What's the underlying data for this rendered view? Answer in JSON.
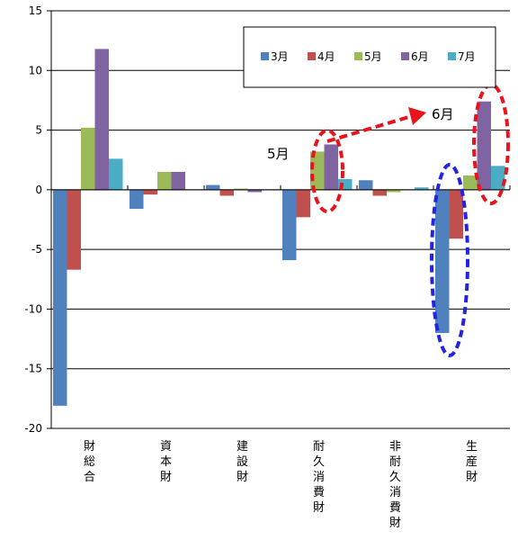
{
  "chart_data": {
    "type": "bar",
    "categories": [
      "財総合",
      "資本財",
      "建設財",
      "耐久消費財",
      "非耐久消費財",
      "生産財"
    ],
    "series": [
      {
        "name": "3月",
        "color": "#4F81BD",
        "values": [
          -18.1,
          -1.6,
          0.4,
          -5.9,
          0.8,
          -12.0
        ]
      },
      {
        "name": "4月",
        "color": "#C0504D",
        "values": [
          -6.7,
          -0.4,
          -0.5,
          -2.3,
          -0.5,
          -4.1
        ]
      },
      {
        "name": "5月",
        "color": "#9BBB59",
        "values": [
          5.2,
          1.5,
          0.1,
          3.2,
          -0.2,
          1.2
        ]
      },
      {
        "name": "6月",
        "color": "#8064A2",
        "values": [
          11.8,
          1.5,
          -0.2,
          3.8,
          0.0,
          7.4
        ]
      },
      {
        "name": "7月",
        "color": "#4BACC6",
        "values": [
          2.6,
          0.0,
          0.0,
          0.9,
          0.2,
          2.0
        ]
      }
    ],
    "ylim": [
      -20,
      15
    ],
    "yticks": [
      -20,
      -15,
      -10,
      -5,
      0,
      5,
      10,
      15
    ],
    "grid": true,
    "legend": "top-right"
  },
  "annotations": {
    "may_label": "5月",
    "june_label": "6月"
  },
  "colors": {
    "highlight_red": "#E8131B",
    "highlight_blue": "#2323E0"
  }
}
